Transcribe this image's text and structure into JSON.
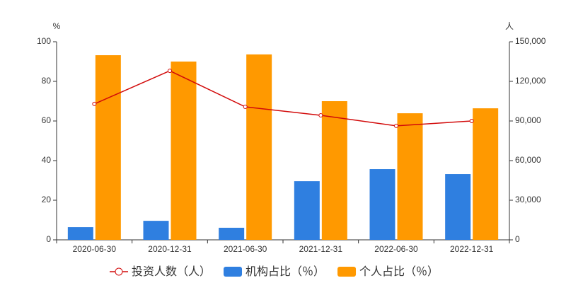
{
  "chart_data": {
    "type": "bar",
    "ylabel": "%",
    "y2label": "人",
    "categories": [
      "2020-06-30",
      "2020-12-31",
      "2021-06-30",
      "2021-12-31",
      "2022-06-30",
      "2022-12-31"
    ],
    "series": [
      {
        "name": "投资人数（人）",
        "type": "line",
        "axis": "y2",
        "color": "#d20a0a",
        "values": [
          102900,
          128000,
          100700,
          94300,
          86300,
          90000
        ]
      },
      {
        "name": "机构占比（％）",
        "type": "bar",
        "color": "#2f7fe0",
        "values": [
          6.4,
          9.6,
          6.1,
          29.6,
          35.7,
          33.2
        ]
      },
      {
        "name": "个人占比（％）",
        "type": "bar",
        "color": "#ff9900",
        "values": [
          93.2,
          90,
          93.6,
          70,
          63.9,
          66.4
        ]
      }
    ],
    "ylim": [
      0,
      100
    ],
    "yticks": [
      0,
      20,
      40,
      60,
      80,
      100
    ],
    "y2lim": [
      0,
      150000
    ],
    "y2ticks": [
      0,
      {
        "value": 30000,
        "label": "30,000"
      },
      {
        "value": 60000,
        "label": "60,000"
      },
      {
        "value": 90000,
        "label": "90,000"
      },
      {
        "value": 120000,
        "label": "120,000"
      },
      {
        "value": 150000,
        "label": "150,000"
      }
    ],
    "grid": false
  }
}
